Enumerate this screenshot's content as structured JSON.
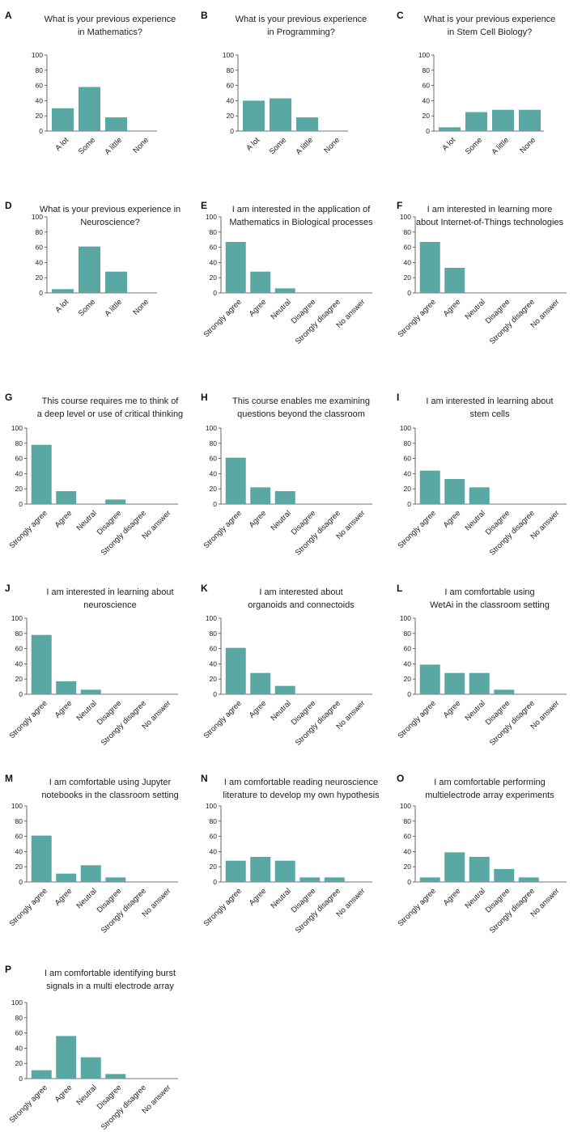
{
  "colors": {
    "bar": "#5aa8a3",
    "axis": "#444444",
    "text": "#222222"
  },
  "chart_data": [
    {
      "id": "A",
      "type": "bar",
      "title": [
        "What is your previous experience",
        "in Mathematics?"
      ],
      "categories": [
        "A lot",
        "Some",
        "A little",
        "None"
      ],
      "values": [
        30,
        58,
        18,
        0
      ],
      "ylim": [
        0,
        100
      ],
      "yticks": [
        0,
        20,
        40,
        60,
        80,
        100
      ],
      "xlabel": "",
      "ylabel": ""
    },
    {
      "id": "B",
      "type": "bar",
      "title": [
        "What is your previous experience",
        "in Programming?"
      ],
      "categories": [
        "A lot",
        "Some",
        "A little",
        "None"
      ],
      "values": [
        40,
        43,
        18,
        0
      ],
      "ylim": [
        0,
        100
      ],
      "yticks": [
        0,
        20,
        40,
        60,
        80,
        100
      ],
      "xlabel": "",
      "ylabel": ""
    },
    {
      "id": "C",
      "type": "bar",
      "title": [
        "What is your previous experience",
        "in Stem Cell Biology?"
      ],
      "categories": [
        "A lot",
        "Some",
        "A little",
        "None"
      ],
      "values": [
        5,
        25,
        28,
        28
      ],
      "ylim": [
        0,
        100
      ],
      "yticks": [
        0,
        20,
        40,
        60,
        80,
        100
      ],
      "xlabel": "",
      "ylabel": ""
    },
    {
      "id": "D",
      "type": "bar",
      "title": [
        "What is your previous experience in",
        "Neuroscience?"
      ],
      "categories": [
        "A lot",
        "Some",
        "A little",
        "None"
      ],
      "values": [
        5,
        61,
        28,
        0
      ],
      "ylim": [
        0,
        100
      ],
      "yticks": [
        0,
        20,
        40,
        60,
        80,
        100
      ],
      "xlabel": "",
      "ylabel": ""
    },
    {
      "id": "E",
      "type": "bar",
      "title": [
        "I am interested in the application of",
        "Mathematics in Biological processes"
      ],
      "categories": [
        "Strongly agree",
        "Agree",
        "Neutral",
        "Disagree",
        "Strongly disagree",
        "No answer"
      ],
      "values": [
        67,
        28,
        6,
        0,
        0,
        0
      ],
      "ylim": [
        0,
        100
      ],
      "yticks": [
        0,
        20,
        40,
        60,
        80,
        100
      ],
      "xlabel": "",
      "ylabel": ""
    },
    {
      "id": "F",
      "type": "bar",
      "title": [
        "I am interested in learning more",
        "about Internet-of-Things technologies"
      ],
      "categories": [
        "Strongly agree",
        "Agree",
        "Neutral",
        "Disagree",
        "Strongly disagree",
        "No answer"
      ],
      "values": [
        67,
        33,
        0,
        0,
        0,
        0
      ],
      "ylim": [
        0,
        100
      ],
      "yticks": [
        0,
        20,
        40,
        60,
        80,
        100
      ],
      "xlabel": "",
      "ylabel": ""
    },
    {
      "id": "G",
      "type": "bar",
      "title": [
        "This course requires me to think of",
        "a deep level or use of critical thinking"
      ],
      "categories": [
        "Strongly agree",
        "Agree",
        "Neutral",
        "Disagree",
        "Strongly disagree",
        "No answer"
      ],
      "values": [
        78,
        17,
        0,
        6,
        0,
        0
      ],
      "ylim": [
        0,
        100
      ],
      "yticks": [
        0,
        20,
        40,
        60,
        80,
        100
      ],
      "xlabel": "",
      "ylabel": ""
    },
    {
      "id": "H",
      "type": "bar",
      "title": [
        "This course enables me examining",
        "questions beyond the classroom"
      ],
      "categories": [
        "Strongly agree",
        "Agree",
        "Neutral",
        "Disagree",
        "Strongly disagree",
        "No answer"
      ],
      "values": [
        61,
        22,
        17,
        0,
        0,
        0
      ],
      "ylim": [
        0,
        100
      ],
      "yticks": [
        0,
        20,
        40,
        60,
        80,
        100
      ],
      "xlabel": "",
      "ylabel": ""
    },
    {
      "id": "I",
      "type": "bar",
      "title": [
        "I am interested in learning about",
        "stem cells"
      ],
      "categories": [
        "Strongly agree",
        "Agree",
        "Neutral",
        "Disagree",
        "Strongly disagree",
        "No answer"
      ],
      "values": [
        44,
        33,
        22,
        0,
        0,
        0
      ],
      "ylim": [
        0,
        100
      ],
      "yticks": [
        0,
        20,
        40,
        60,
        80,
        100
      ],
      "xlabel": "",
      "ylabel": ""
    },
    {
      "id": "J",
      "type": "bar",
      "title": [
        "I am interested in learning about",
        "neuroscience"
      ],
      "categories": [
        "Strongly agree",
        "Agree",
        "Neutral",
        "Disagree",
        "Strongly disagree",
        "No answer"
      ],
      "values": [
        78,
        17,
        6,
        0,
        0,
        0
      ],
      "ylim": [
        0,
        100
      ],
      "yticks": [
        0,
        20,
        40,
        60,
        80,
        100
      ],
      "xlabel": "",
      "ylabel": ""
    },
    {
      "id": "K",
      "type": "bar",
      "title": [
        "I am interested about",
        "organoids and connectoids"
      ],
      "categories": [
        "Strongly agree",
        "Agree",
        "Neutral",
        "Disagree",
        "Strongly disagree",
        "No answer"
      ],
      "values": [
        61,
        28,
        11,
        0,
        0,
        0
      ],
      "ylim": [
        0,
        100
      ],
      "yticks": [
        0,
        20,
        40,
        60,
        80,
        100
      ],
      "xlabel": "",
      "ylabel": ""
    },
    {
      "id": "L",
      "type": "bar",
      "title": [
        "I am comfortable using",
        "WetAi in the classroom setting"
      ],
      "categories": [
        "Strongly agree",
        "Agree",
        "Neutral",
        "Disagree",
        "Strongly disagree",
        "No answer"
      ],
      "values": [
        39,
        28,
        28,
        6,
        0,
        0
      ],
      "ylim": [
        0,
        100
      ],
      "yticks": [
        0,
        20,
        40,
        60,
        80,
        100
      ],
      "xlabel": "",
      "ylabel": ""
    },
    {
      "id": "M",
      "type": "bar",
      "title": [
        "I am comfortable using Jupyter",
        "notebooks in the classroom setting"
      ],
      "categories": [
        "Strongly agree",
        "Agree",
        "Neutral",
        "Disagree",
        "Strongly disagree",
        "No answer"
      ],
      "values": [
        61,
        11,
        22,
        6,
        0,
        0
      ],
      "ylim": [
        0,
        100
      ],
      "yticks": [
        0,
        20,
        40,
        60,
        80,
        100
      ],
      "xlabel": "",
      "ylabel": ""
    },
    {
      "id": "N",
      "type": "bar",
      "title": [
        "I am comfortable reading neuroscience",
        "literature to develop my own hypothesis"
      ],
      "categories": [
        "Strongly agree",
        "Agree",
        "Neutral",
        "Disagree",
        "Strongly disagree",
        "No answer"
      ],
      "values": [
        28,
        33,
        28,
        6,
        6,
        0
      ],
      "ylim": [
        0,
        100
      ],
      "yticks": [
        0,
        20,
        40,
        60,
        80,
        100
      ],
      "xlabel": "",
      "ylabel": ""
    },
    {
      "id": "O",
      "type": "bar",
      "title": [
        "I am comfortable performing",
        "multielectrode array experiments"
      ],
      "categories": [
        "Strongly agree",
        "Agree",
        "Neutral",
        "Disagree",
        "Strongly disagree",
        "No answer"
      ],
      "values": [
        6,
        39,
        33,
        17,
        6,
        0
      ],
      "ylim": [
        0,
        100
      ],
      "yticks": [
        0,
        20,
        40,
        60,
        80,
        100
      ],
      "xlabel": "",
      "ylabel": ""
    },
    {
      "id": "P",
      "type": "bar",
      "title": [
        "I am comfortable identifying burst",
        "signals in a multi electrode array"
      ],
      "categories": [
        "Strongly agree",
        "Agree",
        "Neutral",
        "Disagree",
        "Strongly disagree",
        "No answer"
      ],
      "values": [
        11,
        56,
        28,
        6,
        0,
        0
      ],
      "ylim": [
        0,
        100
      ],
      "yticks": [
        0,
        20,
        40,
        60,
        80,
        100
      ],
      "xlabel": "",
      "ylabel": ""
    }
  ]
}
